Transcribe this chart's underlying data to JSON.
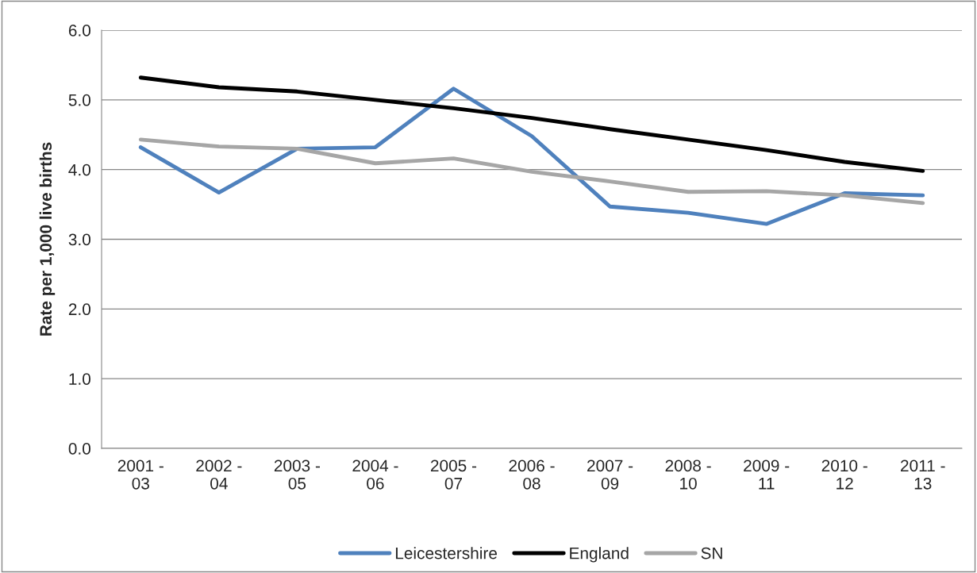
{
  "chart_data": {
    "type": "line",
    "ylabel": "Rate per 1,000 live births",
    "categories": [
      "2001 -\n03",
      "2002 -\n04",
      "2003 -\n05",
      "2004 -\n06",
      "2005 -\n07",
      "2006 -\n08",
      "2007 -\n09",
      "2008 -\n10",
      "2009 -\n11",
      "2010 -\n12",
      "2011 -\n13"
    ],
    "series": [
      {
        "name": "Leicestershire",
        "color": "#4f81bd",
        "values": [
          4.32,
          3.67,
          4.3,
          4.32,
          5.16,
          4.48,
          3.47,
          3.38,
          3.22,
          3.66,
          3.63
        ]
      },
      {
        "name": "England",
        "color": "#000000",
        "values": [
          5.32,
          5.18,
          5.12,
          5.0,
          4.88,
          4.74,
          4.58,
          4.43,
          4.28,
          4.11,
          3.98
        ]
      },
      {
        "name": "SN",
        "color": "#a6a6a6",
        "values": [
          4.43,
          4.33,
          4.3,
          4.09,
          4.16,
          3.97,
          3.83,
          3.68,
          3.69,
          3.63,
          3.52
        ]
      }
    ],
    "ylim": [
      0,
      6
    ],
    "yticks": [
      {
        "value": 0,
        "label": "0.0"
      },
      {
        "value": 1,
        "label": "1.0"
      },
      {
        "value": 2,
        "label": "2.0"
      },
      {
        "value": 3,
        "label": "3.0"
      },
      {
        "value": 4,
        "label": "4.0"
      },
      {
        "value": 5,
        "label": "5.0"
      },
      {
        "value": 6,
        "label": "6.0"
      }
    ],
    "grid": "y",
    "legend": "bottom",
    "marker": "none",
    "line_style": "solid"
  }
}
